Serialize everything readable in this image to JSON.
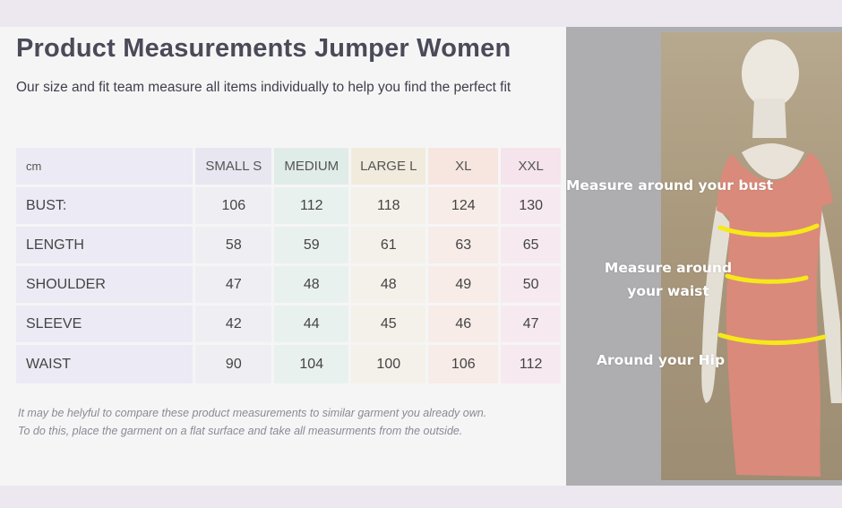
{
  "title": "Product Measurements Jumper Women",
  "subtitle": "Our size and fit team measure all items individually to help you find the perfect fit",
  "table": {
    "unit_label": "cm",
    "headers": [
      "SMALL S",
      "MEDIUM",
      "LARGE L",
      "XL",
      "XXL"
    ],
    "rows": [
      {
        "label": "BUST:",
        "values": [
          "106",
          "112",
          "118",
          "124",
          "130"
        ]
      },
      {
        "label": "LENGTH",
        "values": [
          "58",
          "59",
          "61",
          "63",
          "65"
        ]
      },
      {
        "label": "SHOULDER",
        "values": [
          "47",
          "48",
          "48",
          "49",
          "50"
        ]
      },
      {
        "label": "SLEEVE",
        "values": [
          "42",
          "44",
          "45",
          "46",
          "47"
        ]
      },
      {
        "label": "WAIST",
        "values": [
          "90",
          "104",
          "100",
          "106",
          "112"
        ]
      }
    ]
  },
  "note": {
    "line1": "It may be helyful to compare these product measurements to similar garment you already own.",
    "line2": "To do this, place the garment on a flat surface and take all measurments from the outside."
  },
  "photo": {
    "bust_label": "Measure around your bust",
    "waist_label_line1": "Measure around",
    "waist_label_line2": "your waist",
    "hip_label": "Around your Hip",
    "measure_line_color": "#f7e81a",
    "dress_color": "#d98a7a"
  }
}
